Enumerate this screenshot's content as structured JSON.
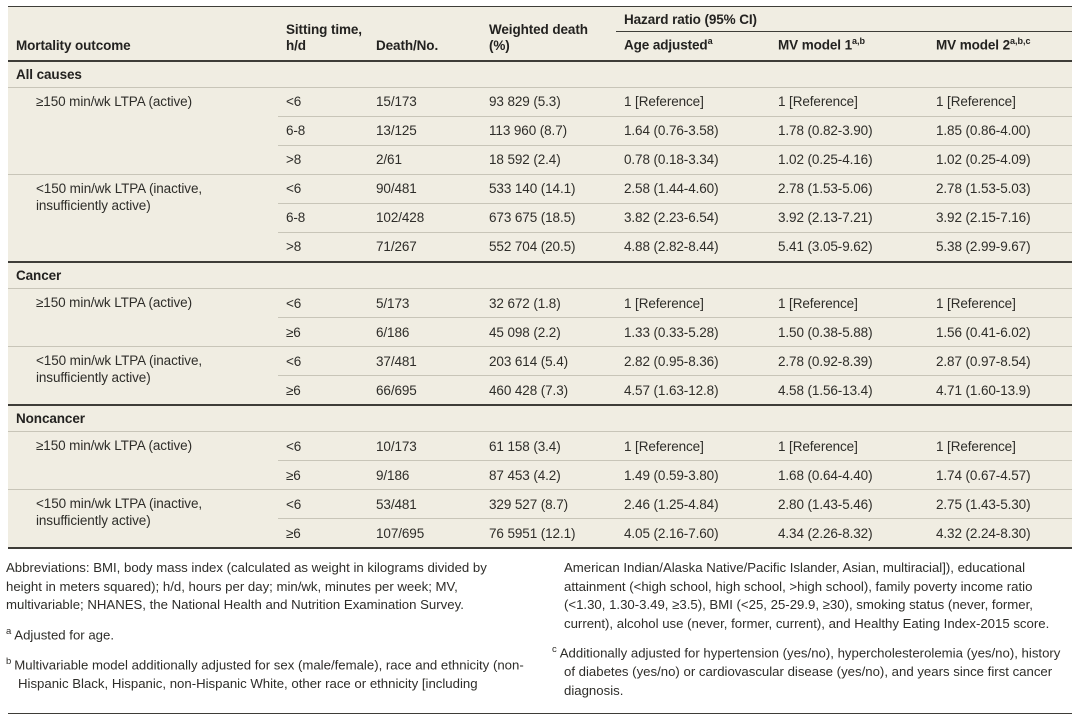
{
  "table": {
    "columns": [
      {
        "label": "Mortality outcome"
      },
      {
        "label": "Sitting time, h/d"
      },
      {
        "label": "Death/No."
      },
      {
        "label": "Weighted death (%)"
      },
      {
        "label": "Hazard ratio (95% CI)",
        "sub": [
          {
            "label": "Age adjusted",
            "sup": "a"
          },
          {
            "label": "MV model 1",
            "sup": "a,b"
          },
          {
            "label": "MV model 2",
            "sup": "a,b,c"
          }
        ]
      }
    ],
    "sections": [
      {
        "header": "All causes",
        "groups": [
          {
            "label": "≥150 min/wk LTPA (active)",
            "rows": [
              [
                "<6",
                "15/173",
                "93 829 (5.3)",
                "1 [Reference]",
                "1 [Reference]",
                "1 [Reference]"
              ],
              [
                "6-8",
                "13/125",
                "113 960 (8.7)",
                "1.64 (0.76-3.58)",
                "1.78 (0.82-3.90)",
                "1.85 (0.86-4.00)"
              ],
              [
                ">8",
                "2/61",
                "18 592 (2.4)",
                "0.78 (0.18-3.34)",
                "1.02 (0.25-4.16)",
                "1.02 (0.25-4.09)"
              ]
            ]
          },
          {
            "label": "<150 min/wk LTPA (inactive, insufficiently active)",
            "rows": [
              [
                "<6",
                "90/481",
                "533 140 (14.1)",
                "2.58 (1.44-4.60)",
                "2.78 (1.53-5.06)",
                "2.78 (1.53-5.03)"
              ],
              [
                "6-8",
                "102/428",
                "673 675 (18.5)",
                "3.82 (2.23-6.54)",
                "3.92 (2.13-7.21)",
                "3.92 (2.15-7.16)"
              ],
              [
                ">8",
                "71/267",
                "552 704 (20.5)",
                "4.88 (2.82-8.44)",
                "5.41 (3.05-9.62)",
                "5.38 (2.99-9.67)"
              ]
            ]
          }
        ]
      },
      {
        "header": "Cancer",
        "groups": [
          {
            "label": "≥150 min/wk LTPA (active)",
            "rows": [
              [
                "<6",
                "5/173",
                "32 672 (1.8)",
                "1 [Reference]",
                "1 [Reference]",
                "1 [Reference]"
              ],
              [
                "≥6",
                "6/186",
                "45 098 (2.2)",
                "1.33 (0.33-5.28)",
                "1.50 (0.38-5.88)",
                "1.56 (0.41-6.02)"
              ]
            ]
          },
          {
            "label": "<150 min/wk LTPA (inactive, insufficiently active)",
            "rows": [
              [
                "<6",
                "37/481",
                "203 614 (5.4)",
                "2.82 (0.95-8.36)",
                "2.78 (0.92-8.39)",
                "2.87 (0.97-8.54)"
              ],
              [
                "≥6",
                "66/695",
                "460 428 (7.3)",
                "4.57 (1.63-12.8)",
                "4.58 (1.56-13.4)",
                "4.71 (1.60-13.9)"
              ]
            ]
          }
        ]
      },
      {
        "header": "Noncancer",
        "groups": [
          {
            "label": "≥150 min/wk LTPA (active)",
            "rows": [
              [
                "<6",
                "10/173",
                "61 158 (3.4)",
                "1 [Reference]",
                "1 [Reference]",
                "1 [Reference]"
              ],
              [
                "≥6",
                "9/186",
                "87 453 (4.2)",
                "1.49 (0.59-3.80)",
                "1.68 (0.64-4.40)",
                "1.74 (0.67-4.57)"
              ]
            ]
          },
          {
            "label": "<150 min/wk LTPA (inactive, insufficiently active)",
            "rows": [
              [
                "<6",
                "53/481",
                "329 527 (8.7)",
                "2.46 (1.25-4.84)",
                "2.80 (1.43-5.46)",
                "2.75 (1.43-5.30)"
              ],
              [
                "≥6",
                "107/695",
                "76 5951 (12.1)",
                "4.05 (2.16-7.60)",
                "4.34 (2.26-8.32)",
                "4.32 (2.24-8.30)"
              ]
            ]
          }
        ]
      }
    ]
  },
  "footnotes": {
    "abbreviations": "Abbreviations: BMI, body mass index (calculated as weight in kilograms divided by height in meters squared); h/d, hours per day; min/wk, minutes per week; MV, multivariable; NHANES, the National Health and Nutrition Examination Survey.",
    "items": [
      {
        "marker": "a",
        "text": "Adjusted for age."
      },
      {
        "marker": "b",
        "text": "Multivariable model additionally adjusted for sex (male/female), race and ethnicity (non-Hispanic Black, Hispanic, non-Hispanic White, other race or ethnicity [including American Indian/Alaska Native/Pacific Islander, Asian, multiracial]), educational attainment (<high school, high school, >high school), family poverty income ratio (<1.30, 1.30-3.49, ≥3.5), BMI (<25, 25-29.9, ≥30), smoking status (never, former, current), alcohol use (never, former, current), and Healthy Eating Index-2015 score."
      },
      {
        "marker": "c",
        "text": "Additionally adjusted for hypertension (yes/no), hypercholesterolemia (yes/no), history of diabetes (yes/no) or cardiovascular disease (yes/no), and years since first cancer diagnosis."
      }
    ]
  },
  "colors": {
    "table_background": "#F0EDE2",
    "rule_dark": "#3E3D38",
    "rule_thin": "#C8C5B8",
    "text": "#2E2D29"
  }
}
